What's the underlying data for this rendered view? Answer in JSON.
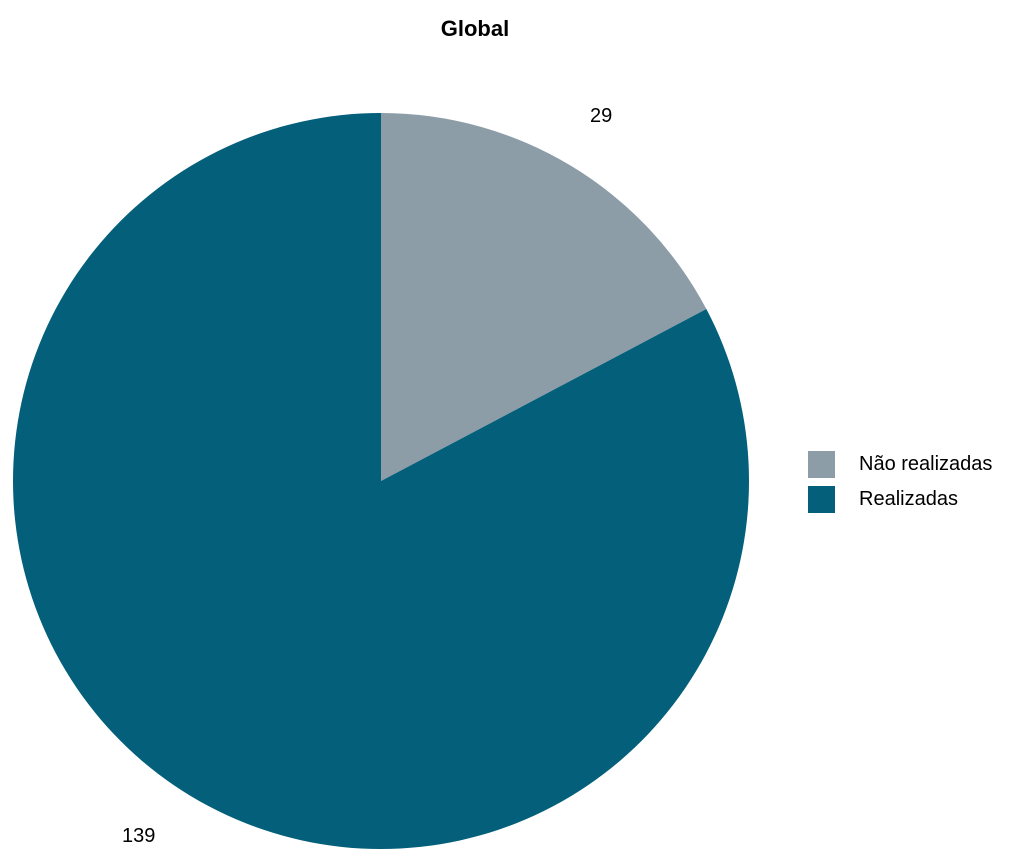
{
  "chart_data": {
    "type": "pie",
    "title": "Global",
    "slices": [
      {
        "label": "Não realizadas",
        "value": 29,
        "color": "#8c9da8",
        "display": "29"
      },
      {
        "label": "Realizadas",
        "value": 139,
        "color": "#035f7a",
        "display": "139"
      }
    ],
    "legend_position": "right"
  }
}
